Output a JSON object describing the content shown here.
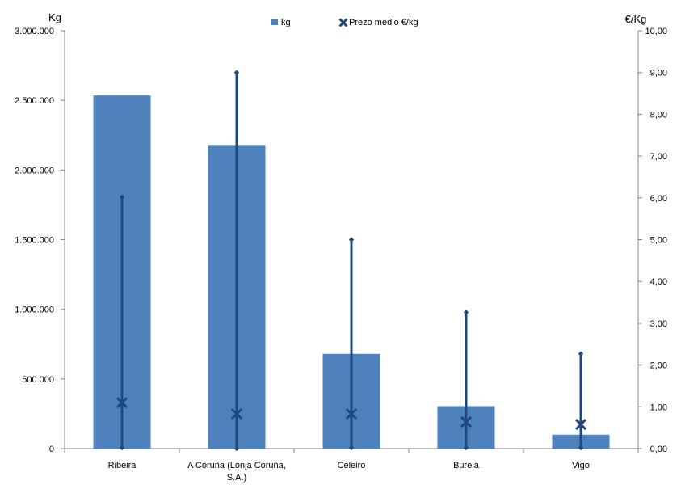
{
  "chart_data": {
    "type": "bar",
    "categories": [
      "Ribeira",
      "A Coruña (Lonja Coruña, S.A.)",
      "Celeiro",
      "Burela",
      "Vigo"
    ],
    "category_lines": [
      [
        "Ribeira"
      ],
      [
        "A Coruña (Lonja Coruña,",
        "S.A.)"
      ],
      [
        "Celeiro"
      ],
      [
        "Burela"
      ],
      [
        "Vigo"
      ]
    ],
    "series": [
      {
        "name": "kg",
        "type": "bar",
        "axis": "left",
        "color": "#4f81bd",
        "values": [
          2535000,
          2180000,
          680000,
          305000,
          100000
        ]
      },
      {
        "name": "Prezo medio €/kg",
        "type": "marker",
        "axis": "right",
        "color": "#1f497d",
        "values": [
          1.1,
          0.83,
          0.83,
          0.64,
          0.58
        ]
      }
    ],
    "price_range": {
      "axis": "right",
      "color": "#1f497d",
      "min": [
        0.02,
        0.0,
        0.02,
        0.02,
        0.02
      ],
      "max": [
        6.02,
        9.0,
        5.0,
        3.26,
        2.27
      ]
    },
    "y_left": {
      "label": "Kg",
      "lim": [
        0,
        3000000
      ],
      "ticks": [
        "0",
        "500.000",
        "1.000.000",
        "1.500.000",
        "2.000.000",
        "2.500.000",
        "3.000.000"
      ]
    },
    "y_right": {
      "label": "€/Kg",
      "lim": [
        0,
        10
      ],
      "ticks": [
        "0,00",
        "1,00",
        "2,00",
        "3,00",
        "4,00",
        "5,00",
        "6,00",
        "7,00",
        "8,00",
        "9,00",
        "10,00"
      ]
    },
    "legend": {
      "placement": "top-center",
      "items": [
        {
          "label": "kg",
          "symbol": "square",
          "color": "#4f81bd"
        },
        {
          "label": "Prezo medio €/kg",
          "symbol": "x",
          "color": "#1f497d"
        }
      ]
    },
    "grid": false
  }
}
